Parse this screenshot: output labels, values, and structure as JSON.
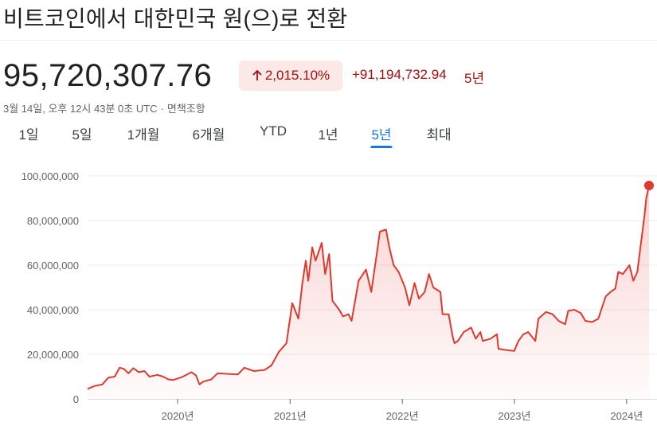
{
  "header": {
    "title": "비트코인에서 대한민국 원(으)로 전환"
  },
  "quote": {
    "price": "95,720,307.76",
    "change_percent": "2,015.10%",
    "change_absolute": "+91,194,732.94",
    "period": "5년",
    "timestamp": "3월 14일, 오후 12시 43분 0초 UTC",
    "separator": "·",
    "disclaimer": "면책조항"
  },
  "colors": {
    "line": "#e0392f",
    "badge_bg": "#fce8e6",
    "negative_text": "#a50e0e",
    "active_tab": "#1a73e8"
  },
  "range_tabs": [
    {
      "label": "1일",
      "active": false
    },
    {
      "label": "5일",
      "active": false
    },
    {
      "label": "1개월",
      "active": false
    },
    {
      "label": "6개월",
      "active": false
    },
    {
      "label": "YTD",
      "active": false
    },
    {
      "label": "1년",
      "active": false
    },
    {
      "label": "5년",
      "active": true
    },
    {
      "label": "최대",
      "active": false
    }
  ],
  "chart_data": {
    "type": "area",
    "title": "",
    "xlabel": "",
    "ylabel": "",
    "x_range": [
      "2019-03-14",
      "2024-03-14"
    ],
    "ylim": [
      0,
      100000000
    ],
    "yticks": [
      {
        "value": 0,
        "label": "0"
      },
      {
        "value": 20000000,
        "label": "20,000,000"
      },
      {
        "value": 40000000,
        "label": "40,000,000"
      },
      {
        "value": 60000000,
        "label": "60,000,000"
      },
      {
        "value": 80000000,
        "label": "80,000,000"
      },
      {
        "value": 100000000,
        "label": "100,000,000"
      }
    ],
    "xticks": [
      {
        "date": "2020-01-01",
        "label": "2020년"
      },
      {
        "date": "2021-01-01",
        "label": "2021년"
      },
      {
        "date": "2022-01-01",
        "label": "2022년"
      },
      {
        "date": "2023-01-01",
        "label": "2023년"
      },
      {
        "date": "2024-01-01",
        "label": "2024년"
      }
    ],
    "grid": true,
    "series": [
      {
        "points": [
          [
            "2019-03-14",
            4500000
          ],
          [
            "2019-04-05",
            5800000
          ],
          [
            "2019-05-01",
            6500000
          ],
          [
            "2019-05-20",
            9500000
          ],
          [
            "2019-06-10",
            10000000
          ],
          [
            "2019-06-26",
            14000000
          ],
          [
            "2019-07-10",
            13500000
          ],
          [
            "2019-07-25",
            11500000
          ],
          [
            "2019-08-10",
            13800000
          ],
          [
            "2019-08-28",
            12000000
          ],
          [
            "2019-09-15",
            12500000
          ],
          [
            "2019-10-01",
            10000000
          ],
          [
            "2019-10-27",
            10800000
          ],
          [
            "2019-11-15",
            10000000
          ],
          [
            "2019-12-01",
            8800000
          ],
          [
            "2019-12-18",
            8500000
          ],
          [
            "2020-01-15",
            9800000
          ],
          [
            "2020-02-15",
            12000000
          ],
          [
            "2020-03-01",
            10500000
          ],
          [
            "2020-03-12",
            6500000
          ],
          [
            "2020-03-25",
            7800000
          ],
          [
            "2020-04-20",
            8800000
          ],
          [
            "2020-05-10",
            11500000
          ],
          [
            "2020-06-15",
            11200000
          ],
          [
            "2020-07-15",
            11000000
          ],
          [
            "2020-08-05",
            14000000
          ],
          [
            "2020-09-05",
            12500000
          ],
          [
            "2020-10-10",
            13000000
          ],
          [
            "2020-11-01",
            15000000
          ],
          [
            "2020-11-25",
            21000000
          ],
          [
            "2020-12-20",
            25000000
          ],
          [
            "2021-01-08",
            43000000
          ],
          [
            "2021-01-28",
            36000000
          ],
          [
            "2021-02-10",
            52000000
          ],
          [
            "2021-02-21",
            62000000
          ],
          [
            "2021-03-01",
            53000000
          ],
          [
            "2021-03-14",
            68000000
          ],
          [
            "2021-03-25",
            62000000
          ],
          [
            "2021-04-14",
            70000000
          ],
          [
            "2021-04-25",
            56000000
          ],
          [
            "2021-05-08",
            65000000
          ],
          [
            "2021-05-19",
            44000000
          ],
          [
            "2021-06-10",
            40000000
          ],
          [
            "2021-06-22",
            37000000
          ],
          [
            "2021-07-10",
            38000000
          ],
          [
            "2021-07-20",
            35000000
          ],
          [
            "2021-08-12",
            53000000
          ],
          [
            "2021-09-05",
            58000000
          ],
          [
            "2021-09-22",
            48000000
          ],
          [
            "2021-10-10",
            65000000
          ],
          [
            "2021-10-20",
            75000000
          ],
          [
            "2021-11-09",
            76000000
          ],
          [
            "2021-11-20",
            68000000
          ],
          [
            "2021-12-04",
            60000000
          ],
          [
            "2021-12-20",
            57000000
          ],
          [
            "2022-01-10",
            50000000
          ],
          [
            "2022-01-24",
            42000000
          ],
          [
            "2022-02-10",
            52000000
          ],
          [
            "2022-02-24",
            45000000
          ],
          [
            "2022-03-15",
            48000000
          ],
          [
            "2022-03-29",
            56000000
          ],
          [
            "2022-04-12",
            50000000
          ],
          [
            "2022-05-05",
            48000000
          ],
          [
            "2022-05-12",
            38000000
          ],
          [
            "2022-06-01",
            38000000
          ],
          [
            "2022-06-14",
            28000000
          ],
          [
            "2022-06-20",
            25000000
          ],
          [
            "2022-07-01",
            26000000
          ],
          [
            "2022-07-20",
            30000000
          ],
          [
            "2022-08-13",
            32000000
          ],
          [
            "2022-08-28",
            27000000
          ],
          [
            "2022-09-12",
            30000000
          ],
          [
            "2022-09-20",
            26000000
          ],
          [
            "2022-10-15",
            27000000
          ],
          [
            "2022-11-05",
            29000000
          ],
          [
            "2022-11-10",
            22500000
          ],
          [
            "2022-12-01",
            22000000
          ],
          [
            "2022-12-31",
            21500000
          ],
          [
            "2023-01-14",
            26000000
          ],
          [
            "2023-01-30",
            29000000
          ],
          [
            "2023-02-15",
            30000000
          ],
          [
            "2023-03-10",
            26000000
          ],
          [
            "2023-03-20",
            36000000
          ],
          [
            "2023-04-14",
            39000000
          ],
          [
            "2023-05-05",
            38000000
          ],
          [
            "2023-05-25",
            35000000
          ],
          [
            "2023-06-15",
            33500000
          ],
          [
            "2023-06-25",
            39500000
          ],
          [
            "2023-07-15",
            40000000
          ],
          [
            "2023-08-05",
            38500000
          ],
          [
            "2023-08-20",
            35000000
          ],
          [
            "2023-09-11",
            34500000
          ],
          [
            "2023-10-01",
            36000000
          ],
          [
            "2023-10-25",
            46000000
          ],
          [
            "2023-11-10",
            48000000
          ],
          [
            "2023-11-25",
            49500000
          ],
          [
            "2023-12-05",
            57000000
          ],
          [
            "2023-12-20",
            56000000
          ],
          [
            "2024-01-10",
            60000000
          ],
          [
            "2024-01-23",
            53000000
          ],
          [
            "2024-02-05",
            57000000
          ],
          [
            "2024-02-15",
            68000000
          ],
          [
            "2024-02-28",
            82000000
          ],
          [
            "2024-03-05",
            90000000
          ],
          [
            "2024-03-14",
            95720307.76
          ]
        ]
      }
    ]
  }
}
